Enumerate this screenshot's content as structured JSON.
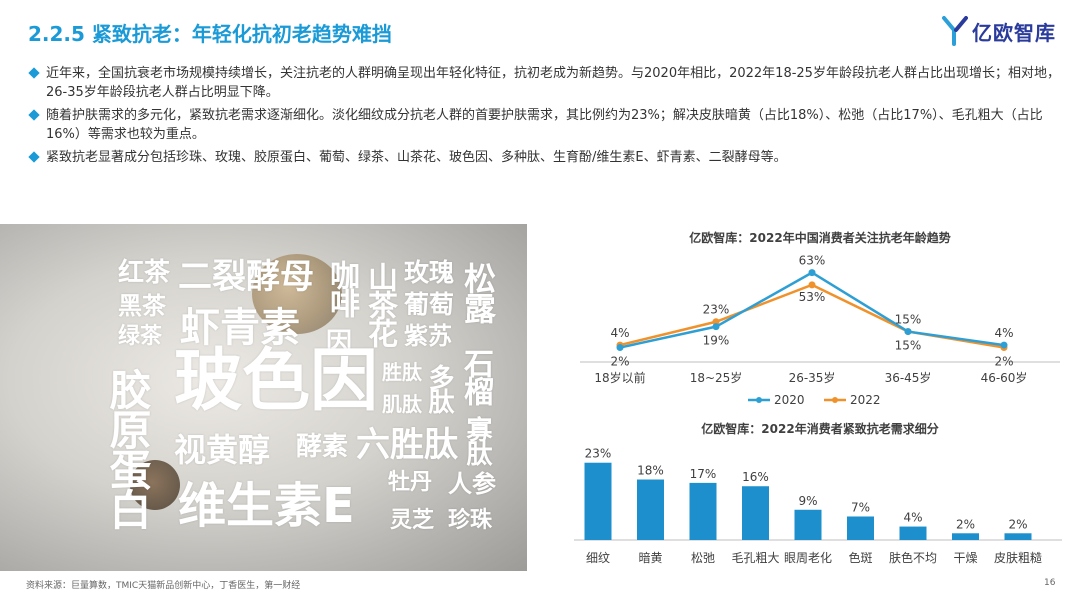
{
  "header": {
    "title": "2.2.5 紧致抗老：年轻化抗初老趋势难挡",
    "logo_text": "亿欧智库"
  },
  "bullets": [
    "近年来，全国抗衰老市场规模持续增长，关注抗老的人群明确呈现出年轻化特征，抗初老成为新趋势。与2020年相比，2022年18-25岁年龄段抗老人群占比出现增长；相对地，26-35岁年龄段抗老人群占比明显下降。",
    "随着护肤需求的多元化，紧致抗老需求逐渐细化。淡化细纹成分抗老人群的首要护肤需求，其比例约为23%；解决皮肤暗黄（占比18%）、松弛（占比17%）、毛孔粗大（占比16%）等需求也较为重点。",
    "紧致抗老显著成分包括珍珠、玫瑰、胶原蛋白、葡萄、绿茶、山茶花、玻色因、多种肽、生育酚/维生素E、虾青素、二裂酵母等。"
  ],
  "word_cloud": [
    "红茶",
    "二裂酵母",
    "咖啡",
    "山茶花",
    "玫瑰",
    "松露",
    "黑茶",
    "葡萄",
    "绿茶",
    "虾青素",
    "因",
    "紫苏",
    "胶原蛋白",
    "玻色因",
    "胜肽",
    "多肽",
    "石榴",
    "肌肽",
    "视黄醇",
    "酵素",
    "六胜肽",
    "寡肽",
    "牡丹",
    "人参",
    "维生素E",
    "灵芝",
    "珍珠"
  ],
  "chart_data": [
    {
      "type": "line",
      "title": "亿欧智库：2022年中国消费者关注抗老年龄趋势",
      "categories": [
        "18岁以前",
        "18~25岁",
        "26-35岁",
        "36-45岁",
        "46-60岁"
      ],
      "series": [
        {
          "name": "2020",
          "values": [
            2,
            19,
            63,
            15,
            4
          ],
          "labels": [
            "2%",
            "19%",
            "63%",
            "15%",
            "4%"
          ],
          "color": "#2e9fd5"
        },
        {
          "name": "2022",
          "values": [
            4,
            23,
            53,
            15,
            2
          ],
          "labels": [
            "4%",
            "23%",
            "53%",
            "15%",
            "2%"
          ],
          "color": "#f0922b"
        }
      ],
      "ylim": [
        0,
        70
      ],
      "legend": "bottom",
      "grid": false
    },
    {
      "type": "bar",
      "title": "亿欧智库：2022年消费者紧致抗老需求细分",
      "categories": [
        "细纹",
        "暗黄",
        "松弛",
        "毛孔粗大",
        "眼周老化",
        "色斑",
        "肤色不均",
        "干燥",
        "皮肤粗糙"
      ],
      "values": [
        23,
        18,
        17,
        16,
        9,
        7,
        4,
        2,
        2
      ],
      "labels": [
        "23%",
        "18%",
        "17%",
        "16%",
        "9%",
        "7%",
        "4%",
        "2%",
        "2%"
      ],
      "color": "#1d8fcd",
      "ylim": [
        0,
        25
      ],
      "grid": false
    }
  ],
  "footer": {
    "source": "资料来源：巨量算数，TMIC天猫新品创新中心，丁香医生，第一财经",
    "page": "16"
  },
  "colors": {
    "accent": "#1a9ad7",
    "logo": "#2a3b9c"
  }
}
